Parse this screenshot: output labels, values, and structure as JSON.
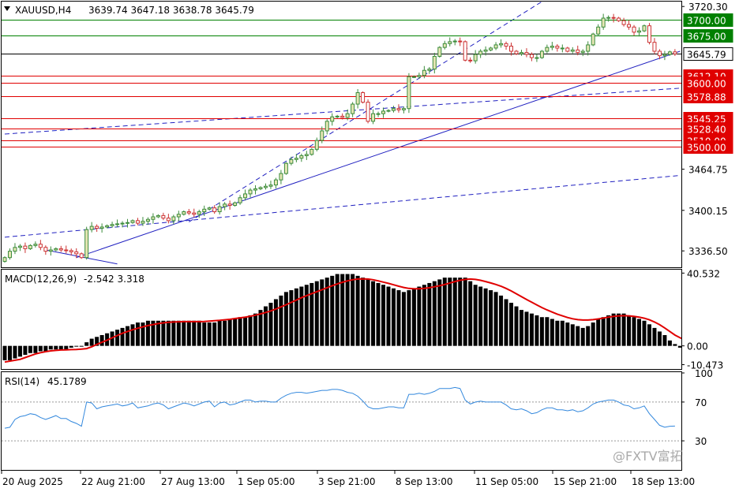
{
  "header": {
    "symbol": "XAUUSD,H4",
    "ohlc": "3639.74 3647.18 3638.78 3645.79"
  },
  "watermark": "@FXTV富拓",
  "colors": {
    "bull": "#3c8c3c",
    "bull_body": "#e6e6b4",
    "bear": "#cc3333",
    "bear_body": "#ffffff",
    "resistance": "#008000",
    "support": "#e00000",
    "price_line": "#000000",
    "trendline": "#2020c0",
    "macd_hist": "#000000",
    "macd_signal": "#e00000",
    "rsi": "#3388dd"
  },
  "chart_data": [
    {
      "type": "candlestick",
      "panel": "price",
      "title": "XAUUSD,H4",
      "ylim": [
        3312,
        3728
      ],
      "yticks": [
        "3720.30",
        "3464.75",
        "3400.15",
        "3336.50"
      ],
      "levels": [
        {
          "name": "resistance",
          "value": "3700.00"
        },
        {
          "name": "resistance",
          "value": "3675.00"
        },
        {
          "name": "current",
          "value": "3645.79"
        },
        {
          "name": "support",
          "value": "3612.10"
        },
        {
          "name": "support",
          "value": "3600.00"
        },
        {
          "name": "support",
          "value": "3578.88"
        },
        {
          "name": "support",
          "value": "3545.25"
        },
        {
          "name": "support",
          "value": "3528.40"
        },
        {
          "name": "support",
          "value": "3510.00"
        },
        {
          "name": "support",
          "value": "3500.00"
        }
      ],
      "close": [
        3326,
        3336,
        3342,
        3344,
        3340,
        3345,
        3347,
        3342,
        3336,
        3338,
        3340,
        3338,
        3337,
        3335,
        3332,
        3326,
        3370,
        3375,
        3372,
        3374,
        3376,
        3378,
        3379,
        3380,
        3381,
        3384,
        3380,
        3383,
        3386,
        3390,
        3392,
        3388,
        3384,
        3390,
        3394,
        3398,
        3396,
        3394,
        3398,
        3402,
        3404,
        3398,
        3406,
        3410,
        3408,
        3412,
        3420,
        3426,
        3432,
        3434,
        3436,
        3438,
        3440,
        3448,
        3458,
        3474,
        3480,
        3482,
        3486,
        3488,
        3496,
        3510,
        3525,
        3540,
        3547,
        3548,
        3546,
        3552,
        3567,
        3585,
        3570,
        3540,
        3552,
        3552,
        3556,
        3557,
        3560,
        3558,
        3560,
        3610,
        3610,
        3612,
        3620,
        3622,
        3642,
        3656,
        3662,
        3665,
        3666,
        3665,
        3636,
        3635,
        3645,
        3650,
        3652,
        3655,
        3660,
        3662,
        3658,
        3650,
        3646,
        3648,
        3645,
        3640,
        3640,
        3650,
        3656,
        3658,
        3655,
        3655,
        3650,
        3652,
        3648,
        3650,
        3660,
        3677,
        3688,
        3702,
        3703,
        3702,
        3698,
        3692,
        3688,
        3680,
        3682,
        3690,
        3664,
        3650,
        3643,
        3645,
        3649,
        3645.79
      ],
      "dates": [
        "20 Aug 2025",
        "22 Aug 21:00",
        "27 Aug 13:00",
        "1 Sep 05:00",
        "3 Sep 21:00",
        "8 Sep 13:00",
        "11 Sep 05:00",
        "15 Sep 21:00",
        "18 Sep 13:00"
      ]
    },
    {
      "type": "bar",
      "panel": "macd",
      "title": "MACD(12,26,9)",
      "current": "-2.542 3.318",
      "ylim": [
        -12,
        42
      ],
      "yticks": [
        "40.532",
        "0.00",
        "-10.473"
      ],
      "histogram": [
        -8,
        -8,
        -7,
        -6,
        -5,
        -4,
        -4,
        -3,
        -3,
        -2,
        -2,
        -2,
        -2,
        -1,
        0,
        0,
        2,
        4,
        5,
        6,
        7,
        8,
        9,
        10,
        11,
        12,
        13,
        13,
        14,
        14,
        14,
        14,
        14,
        14,
        14,
        14,
        14,
        14,
        14,
        13,
        13,
        13,
        14,
        14,
        15,
        15,
        16,
        16,
        17,
        18,
        20,
        22,
        24,
        26,
        28,
        30,
        31,
        32,
        33,
        34,
        35,
        36,
        37,
        38,
        39,
        40,
        40,
        40,
        40,
        39,
        38,
        37,
        36,
        35,
        34,
        33,
        32,
        31,
        30,
        31,
        32,
        33,
        34,
        35,
        36,
        37,
        38,
        38,
        38,
        38,
        38,
        36,
        34,
        33,
        32,
        31,
        30,
        28,
        26,
        24,
        22,
        20,
        19,
        18,
        17,
        16,
        16,
        15,
        14,
        14,
        13,
        12,
        11,
        10,
        11,
        13,
        15,
        16,
        17,
        18,
        18,
        18,
        17,
        16,
        15,
        14,
        12,
        10,
        8,
        6,
        3,
        1,
        -1,
        -2.542
      ],
      "signal": [
        -9,
        -8.5,
        -8,
        -7.5,
        -6.5,
        -5.5,
        -4.5,
        -3.8,
        -3.2,
        -2.8,
        -2.5,
        -2.3,
        -2.2,
        -2.1,
        -2,
        -1.8,
        -1.5,
        -0.5,
        0.8,
        2,
        3.2,
        4.5,
        5.8,
        7,
        8,
        9,
        9.8,
        10.6,
        11.3,
        11.9,
        12.4,
        12.8,
        13.1,
        13.3,
        13.4,
        13.5,
        13.5,
        13.5,
        13.5,
        13.6,
        13.8,
        14,
        14.2,
        14.5,
        14.8,
        15.2,
        15.6,
        16,
        16.5,
        17.1,
        17.8,
        18.6,
        19.5,
        20.5,
        21.7,
        22.9,
        24.2,
        25.5,
        26.8,
        28,
        29.1,
        30.2,
        31.3,
        32.4,
        33.5,
        34.5,
        35.4,
        36.2,
        36.8,
        37.2,
        37.3,
        37.2,
        36.8,
        36.2,
        35.5,
        34.8,
        34,
        33.2,
        32.5,
        32,
        31.8,
        31.8,
        32,
        32.4,
        32.9,
        33.5,
        34.2,
        35,
        35.8,
        36.5,
        37,
        37.2,
        37,
        36.5,
        35.8,
        35,
        34.2,
        33.2,
        32,
        30.6,
        29,
        27.4,
        25.8,
        24.3,
        22.8,
        21.3,
        20,
        18.8,
        17.7,
        16.7,
        15.8,
        15.1,
        14.6,
        14.4,
        14.4,
        14.6,
        15,
        15.5,
        16,
        16.4,
        16.7,
        16.8,
        16.7,
        16.4,
        16,
        15.4,
        14.5,
        13.3,
        11.8,
        10,
        8,
        6,
        4.5,
        3.318
      ]
    },
    {
      "type": "line",
      "panel": "rsi",
      "title": "RSI(14)",
      "current": "45.1789",
      "ylim": [
        0,
        100
      ],
      "yticks": [
        "100",
        "70",
        "30"
      ],
      "levels": [
        70,
        30
      ],
      "values": [
        43,
        44,
        52,
        55,
        56,
        58,
        57,
        54,
        52,
        54,
        56,
        53,
        53,
        50,
        48,
        45,
        70,
        69,
        63,
        65,
        66,
        67,
        68,
        66,
        67,
        69,
        64,
        65,
        66,
        68,
        69,
        67,
        63,
        65,
        67,
        69,
        68,
        66,
        68,
        70,
        71,
        65,
        69,
        70,
        67,
        68,
        70,
        72,
        72,
        70,
        71,
        71,
        70,
        70,
        74,
        77,
        79,
        80,
        80,
        79,
        80,
        81,
        82,
        82,
        83,
        83,
        82,
        80,
        79,
        76,
        71,
        65,
        63,
        63,
        64,
        65,
        65,
        64,
        64,
        78,
        78,
        79,
        78,
        79,
        81,
        84,
        84,
        84,
        85,
        84,
        72,
        68,
        70,
        71,
        70,
        70,
        70,
        70,
        67,
        63,
        62,
        63,
        61,
        58,
        59,
        62,
        64,
        64,
        62,
        62,
        61,
        62,
        60,
        61,
        64,
        68,
        70,
        71,
        72,
        72,
        70,
        67,
        66,
        63,
        64,
        66,
        58,
        52,
        46,
        44,
        45,
        45.1789
      ]
    }
  ]
}
